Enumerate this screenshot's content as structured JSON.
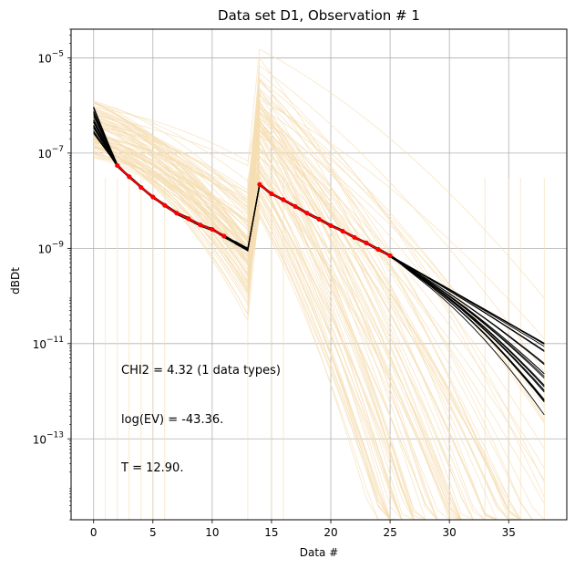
{
  "chart_data": {
    "type": "line",
    "title": "Data set D1, Observation # 1",
    "xlabel": "Data #",
    "ylabel": "dBDt",
    "xlim": [
      -1.9,
      39.9
    ],
    "ylim": [
      2e-15,
      4e-05
    ],
    "yscale": "log",
    "grid": true,
    "x_ticks": [
      0,
      5,
      10,
      15,
      20,
      25,
      30,
      35
    ],
    "x_tick_labels": [
      "0",
      "5",
      "10",
      "15",
      "20",
      "25",
      "30",
      "35"
    ],
    "y_ticks": [
      1e-13,
      1e-11,
      1e-09,
      1e-07,
      1e-05
    ],
    "y_tick_labels": [
      {
        "base": "10",
        "exp": "−13"
      },
      {
        "base": "10",
        "exp": "−11"
      },
      {
        "base": "10",
        "exp": "−9"
      },
      {
        "base": "10",
        "exp": "−7"
      },
      {
        "base": "10",
        "exp": "−5"
      }
    ],
    "prior_color": "#f5deb3",
    "posterior_color": "#000000",
    "observed_color": "#ff0000",
    "observed": {
      "x": [
        2,
        3,
        4,
        5,
        6,
        7,
        8,
        9,
        10,
        11,
        14,
        15,
        16,
        17,
        18,
        19,
        20,
        21,
        22,
        23,
        24,
        25
      ],
      "y": [
        5.5e-08,
        3.2e-08,
        1.9e-08,
        1.2e-08,
        8e-09,
        5.5e-09,
        4.2e-09,
        3.1e-09,
        2.5e-09,
        1.8e-09,
        2.2e-08,
        1.4e-08,
        1.05e-08,
        7.6e-09,
        5.5e-09,
        4.1e-09,
        3e-09,
        2.3e-09,
        1.7e-09,
        1.3e-09,
        9.5e-10,
        7e-10
      ]
    },
    "annotations": [
      "CHI2 = 4.32 (1 data types)",
      "log(EV) = -43.36.",
      "T = 12.90."
    ]
  }
}
